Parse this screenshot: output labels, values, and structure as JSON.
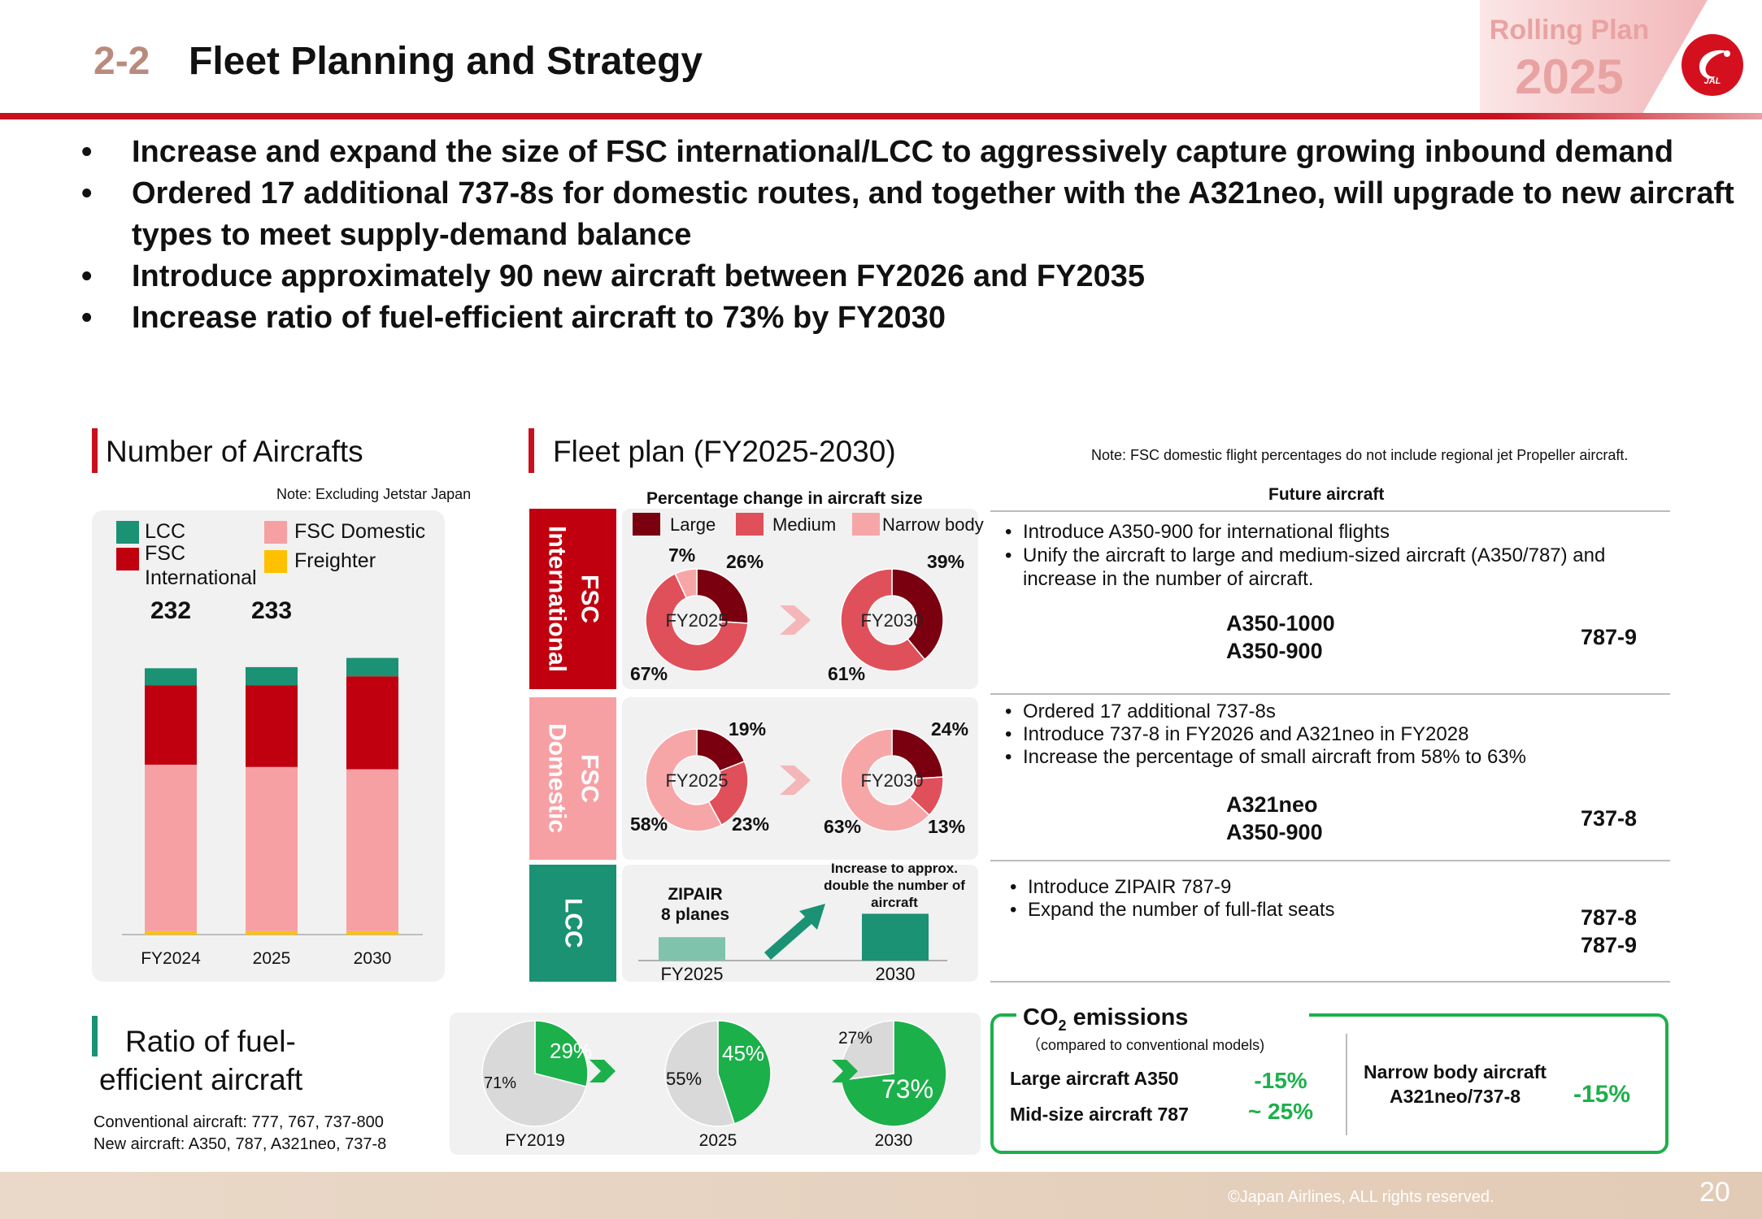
{
  "header": {
    "section_number": "2-2",
    "title": "Fleet Planning and Strategy",
    "badge_label": "Rolling Plan",
    "badge_year": "2025",
    "logo_text": "JAL"
  },
  "bullets": [
    "Increase and expand the size of FSC international/LCC to aggressively capture growing inbound demand",
    "Ordered 17 additional 737-8s for domestic routes, and together with the A321neo, will upgrade to new aircraft types to meet supply-demand balance",
    "Introduce approximately 90 new aircraft between FY2026 and FY2035",
    "Increase ratio of fuel-efficient aircraft to 73% by FY2030"
  ],
  "bullet_glyph": "•",
  "number_of_aircrafts": {
    "title": "Number of Aircrafts",
    "note": "Note: Excluding Jetstar Japan",
    "legend": {
      "lcc": "LCC",
      "fsc_intl": "FSC International",
      "fsc_dom": "FSC Domestic",
      "freighter": "Freighter"
    },
    "colors": {
      "lcc": "#1a9273",
      "fsc_intl": "#c0000f",
      "fsc_dom": "#f7a0a4",
      "freighter": "#ffc000"
    },
    "totals": [
      "232",
      "233",
      ""
    ],
    "chart_data": {
      "type": "bar",
      "categories": [
        "FY2024",
        "2025",
        "2030"
      ],
      "series": [
        {
          "name": "Freighter",
          "values": [
            3,
            3,
            3
          ]
        },
        {
          "name": "FSC Domestic",
          "values": [
            145,
            143,
            141
          ]
        },
        {
          "name": "FSC International",
          "values": [
            69,
            71,
            81
          ]
        },
        {
          "name": "LCC",
          "values": [
            15,
            16,
            16
          ]
        }
      ],
      "ylim": [
        0,
        260
      ]
    }
  },
  "fleet_plan": {
    "title": "Fleet plan (FY2025-2030)",
    "note": "Note: FSC domestic flight percentages do not include regional jet Propeller aircraft.",
    "chart_header": "Percentage change in aircraft size",
    "legend": {
      "large": "Large",
      "medium": "Medium",
      "narrow": "Narrow body"
    },
    "colors": {
      "large": "#7a0010",
      "medium": "#e0505a",
      "narrow": "#f7a6a8",
      "lcc": "#1a9273",
      "lcc_light": "#7fc3ac"
    },
    "rows": {
      "fsc_intl": "FSC International",
      "fsc_dom": "FSC Domestic",
      "lcc": "LCC"
    },
    "donut_labels": {
      "fy2025": "FY2025",
      "fy2030": "FY2030"
    },
    "chart_data": [
      {
        "type": "pie",
        "title": "FSC International FY2025",
        "labels": [
          "Large",
          "Medium",
          "Narrow body"
        ],
        "values": [
          26,
          67,
          7
        ]
      },
      {
        "type": "pie",
        "title": "FSC International FY2030",
        "labels": [
          "Large",
          "Medium"
        ],
        "values": [
          39,
          61
        ]
      },
      {
        "type": "pie",
        "title": "FSC Domestic FY2025",
        "labels": [
          "Large",
          "Medium",
          "Narrow body"
        ],
        "values": [
          19,
          23,
          58
        ]
      },
      {
        "type": "pie",
        "title": "FSC Domestic FY2030",
        "labels": [
          "Large",
          "Medium",
          "Narrow body"
        ],
        "values": [
          24,
          13,
          63
        ]
      }
    ],
    "pct_labels": {
      "intl_25_narrow": "7%",
      "intl_25_large": "26%",
      "intl_25_medium": "67%",
      "intl_30_large": "39%",
      "intl_30_medium": "61%",
      "dom_25_large": "19%",
      "dom_25_medium": "23%",
      "dom_25_narrow": "58%",
      "dom_30_large": "24%",
      "dom_30_narrow": "63%",
      "dom_30_medium": "13%"
    },
    "lcc": {
      "zipair_label": "ZIPAIR\n8 planes",
      "arrow_note": "Increase to approx. double the number of aircraft",
      "x_labels": [
        "FY2025",
        "2030"
      ],
      "chart_data": {
        "type": "bar",
        "categories": [
          "FY2025",
          "2030"
        ],
        "values": [
          8,
          16
        ]
      }
    }
  },
  "future_aircraft": {
    "title": "Future aircraft",
    "intl_bullets": [
      "Introduce A350-900 for international flights",
      "Unify the aircraft to large and medium-sized aircraft (A350/787) and increase in the number of aircraft."
    ],
    "intl_planes": [
      "A350-1000\nA350-900",
      "787-9"
    ],
    "dom_bullets": [
      "Ordered 17 additional 737-8s",
      "Introduce 737-8 in FY2026 and A321neo in FY2028",
      "Increase the percentage of small aircraft from 58% to 63%"
    ],
    "dom_planes": [
      "A321neo\nA350-900",
      "737-8"
    ],
    "lcc_bullets": [
      "Introduce ZIPAIR 787-9",
      "Expand the number of full-flat seats"
    ],
    "lcc_planes": [
      "787-8\n787-9"
    ]
  },
  "fuel_ratio": {
    "title": "Ratio of fuel-efficient aircraft",
    "conventional": "Conventional aircraft: 777, 767, 737-800",
    "new": "New aircraft: A350, 787, A321neo, 737-8",
    "colors": {
      "new": "#1cb04b",
      "conv": "#d9d9d9"
    },
    "chart_data": [
      {
        "type": "pie",
        "title": "FY2019",
        "labels": [
          "New",
          "Conventional"
        ],
        "values": [
          29,
          71
        ]
      },
      {
        "type": "pie",
        "title": "2025",
        "labels": [
          "New",
          "Conventional"
        ],
        "values": [
          45,
          55
        ]
      },
      {
        "type": "pie",
        "title": "2030",
        "labels": [
          "New",
          "Conventional"
        ],
        "values": [
          73,
          27
        ]
      }
    ],
    "labels": {
      "y19_new": "29%",
      "y19_conv": "71%",
      "y25_new": "45%",
      "y25_conv": "55%",
      "y30_new": "73%",
      "y30_conv": "27%",
      "x": [
        "FY2019",
        "2025",
        "2030"
      ]
    }
  },
  "co2": {
    "title_prefix": "CO",
    "title_sub": "2",
    "title_suffix": " emissions",
    "subtitle": "（compared to conventional models)",
    "large_label": "Large aircraft A350",
    "mid_label": "Mid-size aircraft 787",
    "large_mid_value_1": "-15%",
    "large_mid_value_2": "~ 25%",
    "narrow_label_1": "Narrow body aircraft",
    "narrow_label_2": "A321neo/737-8",
    "narrow_value": "-15%"
  },
  "footer": {
    "copyright": "©Japan Airlines, ALL rights reserved.",
    "page": "20"
  }
}
